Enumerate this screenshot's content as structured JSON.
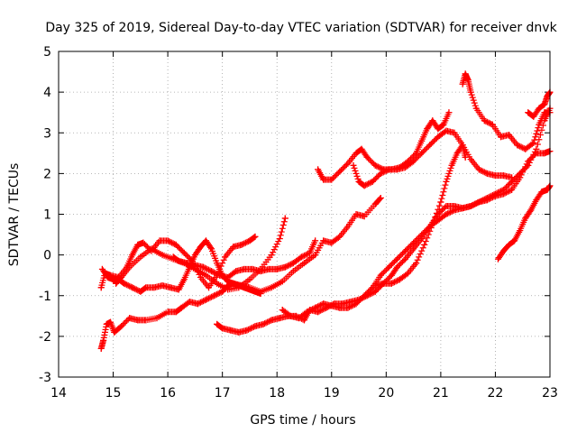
{
  "chart_data": {
    "type": "scatter",
    "title": "Day 325 of 2019, Sidereal Day-to-day VTEC variation (SDTVAR) for receiver dnvk",
    "xlabel": "GPS time / hours",
    "ylabel": "SDTVAR / TECUs",
    "xlim": [
      14,
      23
    ],
    "ylim": [
      -3,
      5
    ],
    "xticks": [
      "14",
      "15",
      "16",
      "17",
      "18",
      "19",
      "20",
      "21",
      "22",
      "23"
    ],
    "yticks": [
      "-3",
      "-2",
      "-1",
      "0",
      "1",
      "2",
      "3",
      "4",
      "5"
    ],
    "grid": true,
    "marker": "+",
    "marker_color": "#ff0000",
    "series": [
      {
        "x": [
          14.78,
          14.85,
          14.95,
          15.1,
          15.25,
          15.35,
          15.45,
          15.55,
          15.7,
          15.85,
          16.0,
          16.15,
          16.3,
          16.45,
          16.6,
          16.75,
          16.9,
          17.05,
          17.2,
          17.35,
          17.5,
          17.6
        ],
        "y": [
          -0.8,
          -0.45,
          -0.5,
          -0.55,
          -0.3,
          0.0,
          0.25,
          0.3,
          0.1,
          0.35,
          0.35,
          0.25,
          0.05,
          -0.15,
          -0.55,
          -0.8,
          -0.5,
          -0.05,
          0.2,
          0.25,
          0.35,
          0.45
        ]
      },
      {
        "x": [
          14.8,
          14.9,
          15.0,
          15.1,
          15.2,
          15.35,
          15.5,
          15.6,
          15.75,
          15.9,
          16.05,
          16.2,
          16.3,
          16.4,
          16.5,
          16.6,
          16.7,
          16.8,
          16.9,
          17.0,
          17.1,
          17.2,
          17.3,
          17.4,
          17.5,
          17.6,
          17.7
        ],
        "y": [
          -0.35,
          -0.55,
          -0.6,
          -0.6,
          -0.7,
          -0.8,
          -0.9,
          -0.8,
          -0.8,
          -0.75,
          -0.8,
          -0.85,
          -0.6,
          -0.3,
          0.0,
          0.2,
          0.35,
          0.15,
          -0.2,
          -0.5,
          -0.65,
          -0.7,
          -0.75,
          -0.8,
          -0.85,
          -0.9,
          -0.95
        ]
      },
      {
        "x": [
          15.05,
          15.15,
          15.3,
          15.5,
          15.7,
          15.9,
          16.1,
          16.3,
          16.5,
          16.7,
          16.9,
          17.1,
          17.3,
          17.5,
          17.7,
          17.9,
          18.05,
          18.15
        ],
        "y": [
          -0.7,
          -0.55,
          -0.3,
          -0.05,
          0.15,
          0.0,
          -0.1,
          -0.2,
          -0.35,
          -0.5,
          -0.7,
          -0.85,
          -0.8,
          -0.6,
          -0.35,
          0.0,
          0.4,
          0.9
        ]
      },
      {
        "x": [
          16.1,
          16.2,
          16.35,
          16.5,
          16.65,
          16.8,
          16.95,
          17.1,
          17.25,
          17.4,
          17.55,
          17.7,
          17.85,
          18.0,
          18.15,
          18.3,
          18.45,
          18.6,
          18.7
        ],
        "y": [
          -0.05,
          -0.15,
          -0.2,
          -0.25,
          -0.3,
          -0.4,
          -0.5,
          -0.55,
          -0.4,
          -0.35,
          -0.35,
          -0.4,
          -0.35,
          -0.35,
          -0.3,
          -0.2,
          -0.05,
          0.05,
          0.35
        ]
      },
      {
        "x": [
          14.78,
          14.82,
          14.88,
          14.95,
          15.02,
          15.15,
          15.3,
          15.45,
          15.6,
          15.8,
          16.0,
          16.15,
          16.25,
          16.4,
          16.55,
          16.7,
          16.85,
          17.0,
          17.1,
          17.2,
          17.35,
          17.5,
          17.7,
          17.9,
          18.1,
          18.3,
          18.5,
          18.7,
          18.85,
          19.0,
          19.15,
          19.3,
          19.45,
          19.6,
          19.8,
          19.9
        ],
        "y": [
          -2.3,
          -2.1,
          -1.7,
          -1.65,
          -1.9,
          -1.75,
          -1.55,
          -1.6,
          -1.6,
          -1.55,
          -1.4,
          -1.4,
          -1.3,
          -1.15,
          -1.2,
          -1.1,
          -1.0,
          -0.9,
          -0.75,
          -0.7,
          -0.75,
          -0.8,
          -0.9,
          -0.8,
          -0.65,
          -0.4,
          -0.2,
          0.0,
          0.35,
          0.3,
          0.45,
          0.7,
          1.0,
          0.95,
          1.25,
          1.4
        ]
      },
      {
        "x": [
          16.9,
          17.0,
          17.15,
          17.3,
          17.45,
          17.6,
          17.75,
          17.9,
          18.05,
          18.2,
          18.35,
          18.5,
          18.6,
          18.75,
          18.9,
          19.05,
          19.2,
          19.35,
          19.5,
          19.65,
          19.8,
          19.95,
          20.1,
          20.2,
          20.35,
          20.5,
          20.65,
          20.8,
          20.95,
          21.1,
          21.25,
          21.4,
          21.55,
          21.7,
          21.85,
          22.0,
          22.15,
          22.3,
          22.45,
          22.6,
          22.75,
          22.9,
          23.0
        ],
        "y": [
          -1.7,
          -1.8,
          -1.85,
          -1.9,
          -1.85,
          -1.75,
          -1.7,
          -1.6,
          -1.55,
          -1.5,
          -1.5,
          -1.6,
          -1.35,
          -1.4,
          -1.3,
          -1.2,
          -1.2,
          -1.15,
          -1.1,
          -1.0,
          -0.9,
          -0.7,
          -0.5,
          -0.3,
          -0.1,
          0.15,
          0.4,
          0.7,
          1.0,
          1.2,
          1.2,
          1.15,
          1.2,
          1.3,
          1.35,
          1.45,
          1.5,
          1.6,
          1.9,
          2.3,
          2.5,
          2.5,
          2.55
        ]
      },
      {
        "x": [
          18.1,
          18.25,
          18.4,
          18.55,
          18.7,
          18.85,
          19.0,
          19.15,
          19.3,
          19.45,
          19.6,
          19.75,
          19.9,
          20.05,
          20.2,
          20.35,
          20.5,
          20.65,
          20.8,
          20.95,
          21.1,
          21.25,
          21.4,
          21.55,
          21.7,
          21.85,
          22.0,
          22.15,
          22.3,
          22.45,
          22.6,
          22.75,
          22.9,
          23.0
        ],
        "y": [
          -1.35,
          -1.5,
          -1.55,
          -1.4,
          -1.3,
          -1.2,
          -1.25,
          -1.3,
          -1.3,
          -1.2,
          -1.0,
          -0.8,
          -0.5,
          -0.3,
          -0.1,
          0.1,
          0.3,
          0.5,
          0.7,
          0.85,
          1.0,
          1.1,
          1.15,
          1.2,
          1.3,
          1.4,
          1.5,
          1.6,
          1.8,
          2.0,
          2.2,
          2.6,
          3.3,
          3.6
        ]
      },
      {
        "x": [
          18.75,
          18.85,
          19.0,
          19.15,
          19.3,
          19.45,
          19.55,
          19.65,
          19.8,
          19.95,
          20.1,
          20.25,
          20.4,
          20.55,
          20.65,
          20.75,
          20.85,
          20.95,
          21.05,
          21.15
        ],
        "y": [
          2.1,
          1.85,
          1.85,
          2.05,
          2.25,
          2.5,
          2.6,
          2.4,
          2.2,
          2.1,
          2.1,
          2.15,
          2.3,
          2.5,
          2.8,
          3.1,
          3.3,
          3.1,
          3.2,
          3.5
        ]
      },
      {
        "x": [
          19.4,
          19.5,
          19.6,
          19.75,
          19.9,
          20.05,
          20.2,
          20.35,
          20.5,
          20.65,
          20.8,
          20.95,
          21.1,
          21.25,
          21.4,
          21.55,
          21.7,
          21.85,
          22.0,
          22.15,
          22.3
        ],
        "y": [
          2.2,
          1.8,
          1.7,
          1.8,
          2.0,
          2.1,
          2.1,
          2.15,
          2.3,
          2.5,
          2.7,
          2.9,
          3.05,
          3.0,
          2.7,
          2.35,
          2.1,
          2.0,
          1.95,
          1.95,
          1.9
        ]
      },
      {
        "x": [
          19.8,
          19.95,
          20.1,
          20.25,
          20.4,
          20.55,
          20.7,
          20.85,
          21.0,
          21.1,
          21.2,
          21.3,
          21.4,
          21.45
        ],
        "y": [
          -0.75,
          -0.7,
          -0.7,
          -0.6,
          -0.45,
          -0.2,
          0.25,
          0.75,
          1.3,
          1.8,
          2.2,
          2.5,
          2.7,
          2.4
        ]
      },
      {
        "x": [
          21.4,
          21.45,
          21.5,
          21.55,
          21.65,
          21.8,
          21.95,
          22.1,
          22.25,
          22.4,
          22.55,
          22.7,
          22.8,
          22.9,
          23.0
        ],
        "y": [
          4.2,
          4.45,
          4.3,
          4.0,
          3.6,
          3.3,
          3.2,
          2.9,
          2.95,
          2.7,
          2.6,
          2.75,
          3.2,
          3.5,
          3.5
        ]
      },
      {
        "x": [
          22.05,
          22.15,
          22.25,
          22.35,
          22.45,
          22.55,
          22.65,
          22.75,
          22.85,
          22.95,
          23.0
        ],
        "y": [
          -0.1,
          0.1,
          0.25,
          0.35,
          0.6,
          0.9,
          1.1,
          1.35,
          1.55,
          1.6,
          1.7
        ]
      },
      {
        "x": [
          22.6,
          22.7,
          22.8,
          22.9,
          22.95,
          23.0
        ],
        "y": [
          3.5,
          3.4,
          3.6,
          3.7,
          3.9,
          4.0
        ]
      }
    ]
  }
}
